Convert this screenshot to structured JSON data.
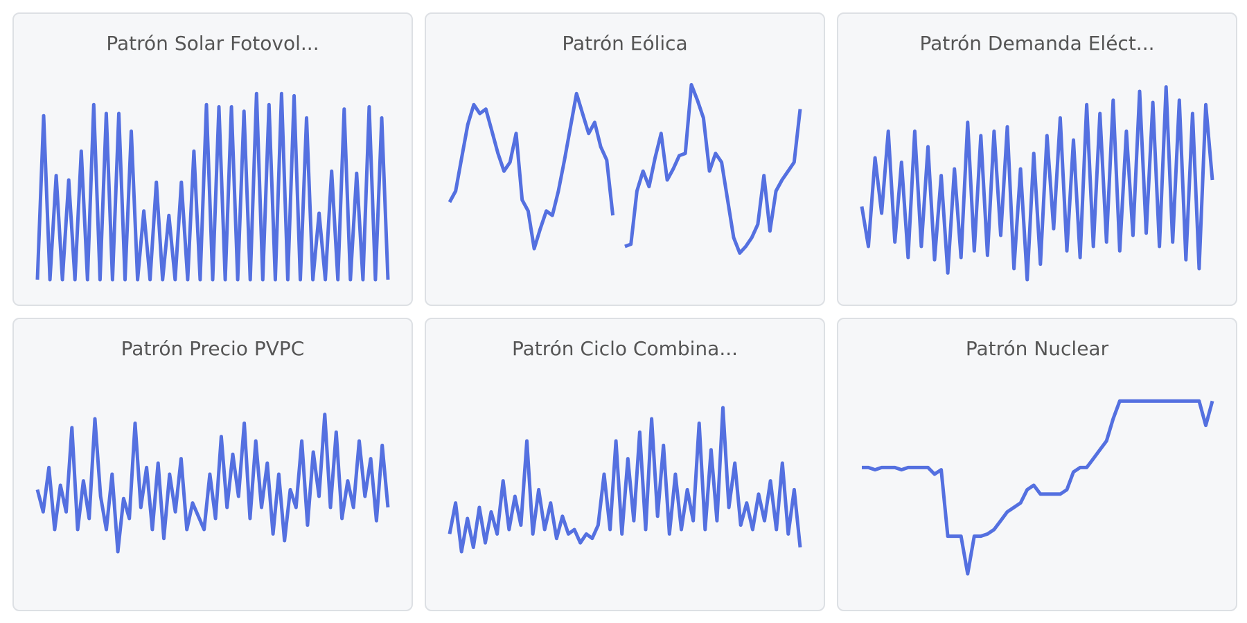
{
  "chart_data": [
    {
      "type": "line",
      "title": "Patrón Solar Fotovol...",
      "color": "#5470e0",
      "ylim": [
        0,
        100
      ],
      "values": [
        5,
        79,
        5,
        52,
        5,
        50,
        5,
        63,
        5,
        84,
        5,
        80,
        5,
        80,
        5,
        72,
        5,
        36,
        5,
        49,
        5,
        34,
        5,
        49,
        5,
        63,
        5,
        84,
        5,
        83,
        5,
        83,
        5,
        81,
        5,
        89,
        5,
        84,
        5,
        89,
        5,
        88,
        5,
        78,
        5,
        35,
        5,
        54,
        5,
        82,
        5,
        53,
        5,
        83,
        5,
        78,
        5
      ]
    },
    {
      "type": "line",
      "title": "Patrón Eólica",
      "color": "#5470e0",
      "ylim": [
        0,
        100
      ],
      "values": [
        40,
        45,
        60,
        75,
        84,
        80,
        82,
        72,
        62,
        54,
        58,
        71,
        41,
        36,
        19,
        28,
        36,
        34,
        45,
        59,
        74,
        89,
        80,
        71,
        76,
        65,
        59,
        34,
        null,
        20,
        21,
        45,
        54,
        47,
        60,
        71,
        50,
        55,
        61,
        62,
        93,
        86,
        78,
        54,
        62,
        58,
        41,
        24,
        17,
        20,
        24,
        30,
        52,
        27,
        45,
        50,
        54,
        58,
        82
      ]
    },
    {
      "type": "line",
      "title": "Patrón Demanda Eléct...",
      "color": "#5470e0",
      "ylim": [
        0,
        100
      ],
      "values": [
        38,
        20,
        60,
        35,
        72,
        22,
        58,
        15,
        72,
        20,
        65,
        14,
        52,
        8,
        55,
        15,
        76,
        18,
        70,
        16,
        72,
        25,
        74,
        10,
        55,
        5,
        62,
        12,
        70,
        28,
        78,
        18,
        68,
        15,
        84,
        20,
        80,
        22,
        86,
        18,
        72,
        25,
        90,
        26,
        85,
        20,
        92,
        22,
        86,
        14,
        80,
        10,
        84,
        50
      ]
    },
    {
      "type": "line",
      "title": "Patrón Precio PVPC",
      "color": "#5470e0",
      "ylim": [
        0,
        100
      ],
      "values": [
        48,
        38,
        58,
        30,
        50,
        38,
        76,
        30,
        52,
        35,
        80,
        45,
        30,
        55,
        20,
        44,
        35,
        78,
        40,
        58,
        30,
        60,
        26,
        55,
        38,
        62,
        30,
        42,
        36,
        30,
        55,
        35,
        72,
        40,
        64,
        45,
        78,
        35,
        70,
        40,
        60,
        28,
        55,
        25,
        48,
        40,
        70,
        32,
        65,
        45,
        82,
        40,
        74,
        35,
        52,
        40,
        70,
        45,
        62,
        34,
        68,
        40
      ]
    },
    {
      "type": "line",
      "title": "Patrón Ciclo Combina...",
      "color": "#5470e0",
      "ylim": [
        0,
        100
      ],
      "values": [
        28,
        42,
        20,
        35,
        22,
        40,
        24,
        38,
        28,
        52,
        30,
        45,
        32,
        70,
        28,
        48,
        30,
        42,
        26,
        36,
        28,
        30,
        24,
        28,
        26,
        32,
        55,
        30,
        70,
        28,
        62,
        34,
        74,
        30,
        80,
        36,
        68,
        28,
        55,
        30,
        48,
        34,
        78,
        30,
        66,
        34,
        85,
        40,
        60,
        32,
        42,
        30,
        46,
        34,
        52,
        30,
        60,
        28,
        48,
        22
      ]
    },
    {
      "type": "line",
      "title": "Patrón Nuclear",
      "color": "#5470e0",
      "ylim": [
        0,
        100
      ],
      "values": [
        58,
        58,
        57,
        58,
        58,
        58,
        57,
        58,
        58,
        58,
        58,
        55,
        57,
        27,
        27,
        27,
        10,
        27,
        27,
        28,
        30,
        34,
        38,
        40,
        42,
        48,
        50,
        46,
        46,
        46,
        46,
        48,
        56,
        58,
        58,
        62,
        66,
        70,
        80,
        88,
        88,
        88,
        88,
        88,
        88,
        88,
        88,
        88,
        88,
        88,
        88,
        88,
        77,
        88
      ]
    }
  ]
}
